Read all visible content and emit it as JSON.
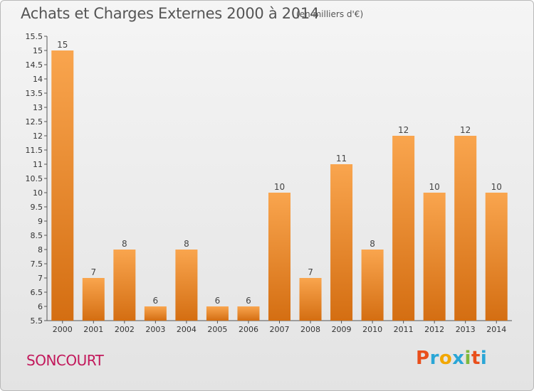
{
  "header": {
    "title": "Achats et Charges Externes 2000 à 2014",
    "subtitle": "(en milliers d'€)"
  },
  "footer": {
    "location": "SONCOURT",
    "brand": "Proxiti"
  },
  "colors": {
    "bar_light": "#f9a54e",
    "bar_dark": "#d46e12",
    "location_text": "#c2185b",
    "brand_letters": [
      "#e94e1b",
      "#2aa6d6",
      "#f2a700",
      "#2aa6d6",
      "#7fb83c",
      "#e94e1b",
      "#2aa6d6"
    ]
  },
  "chart_data": {
    "type": "bar",
    "title": "Achats et Charges Externes 2000 à 2014",
    "subtitle": "(en milliers d'€)",
    "categories": [
      "2000",
      "2001",
      "2002",
      "2003",
      "2004",
      "2005",
      "2006",
      "2007",
      "2008",
      "2009",
      "2010",
      "2011",
      "2012",
      "2013",
      "2014"
    ],
    "values": [
      15,
      7,
      8,
      6,
      8,
      6,
      6,
      10,
      7,
      11,
      8,
      12,
      10,
      12,
      10
    ],
    "data_labels": [
      "15",
      "7",
      "8",
      "6",
      "8",
      "6",
      "6",
      "10",
      "7",
      "11",
      "8",
      "12",
      "10",
      "12",
      "10"
    ],
    "ylim": [
      5.5,
      15.5
    ],
    "yticks": [
      5.5,
      6,
      6.5,
      7,
      7.5,
      8,
      8.5,
      9,
      9.5,
      10,
      10.5,
      11,
      11.5,
      12,
      12.5,
      13,
      13.5,
      14,
      14.5,
      15,
      15.5
    ],
    "ytick_labels": [
      "5.5",
      "6",
      "6.5",
      "7",
      "7.5",
      "8",
      "8.5",
      "9",
      "9.5",
      "10",
      "10.5",
      "11",
      "11.5",
      "12",
      "12.5",
      "13",
      "13.5",
      "14",
      "14.5",
      "15",
      "15.5"
    ],
    "xlabel": "",
    "ylabel": "",
    "grid": false,
    "legend": "none"
  }
}
